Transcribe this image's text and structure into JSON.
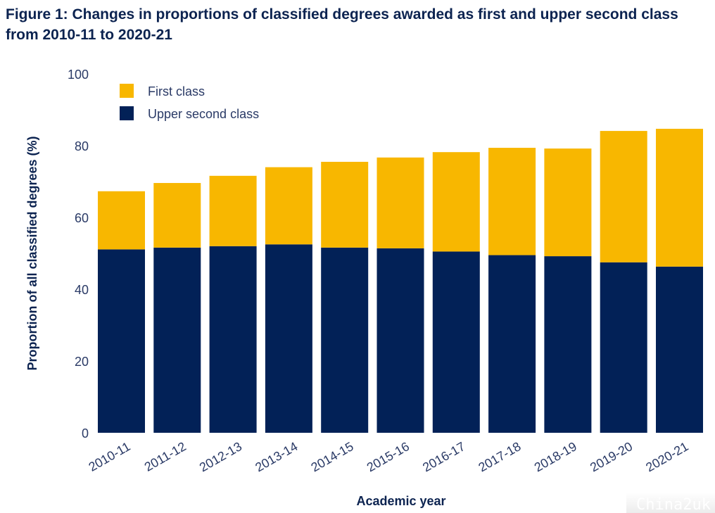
{
  "title": "Figure 1: Changes in proportions of classified degrees awarded as first and upper second class from 2010-11 to 2020-21",
  "watermark": "China2uk",
  "chart_data": {
    "type": "bar",
    "stacked": true,
    "title": "Figure 1: Changes in proportions of classified degrees awarded as first and upper second class from 2010-11 to 2020-21",
    "xlabel": "Academic year",
    "ylabel": "Proportion of all classified degrees (%)",
    "ylim": [
      0,
      100
    ],
    "yticks": [
      0,
      20,
      40,
      60,
      80,
      100
    ],
    "grid": false,
    "legend_position": "top-left",
    "categories": [
      "2010-11",
      "2011-12",
      "2012-13",
      "2013-14",
      "2014-15",
      "2015-16",
      "2016-17",
      "2017-18",
      "2018-19",
      "2019-20",
      "2020-21"
    ],
    "series": [
      {
        "name": "Upper second class",
        "color": "#022157",
        "values": [
          51.1,
          51.6,
          52.0,
          52.5,
          51.6,
          51.4,
          50.5,
          49.5,
          49.2,
          47.5,
          46.3
        ]
      },
      {
        "name": "First class",
        "color": "#f8b700",
        "values": [
          16.2,
          18.0,
          19.6,
          21.5,
          23.9,
          25.3,
          27.7,
          29.9,
          30.0,
          36.6,
          38.4
        ]
      }
    ],
    "legend": [
      "First class",
      "Upper second class"
    ]
  }
}
